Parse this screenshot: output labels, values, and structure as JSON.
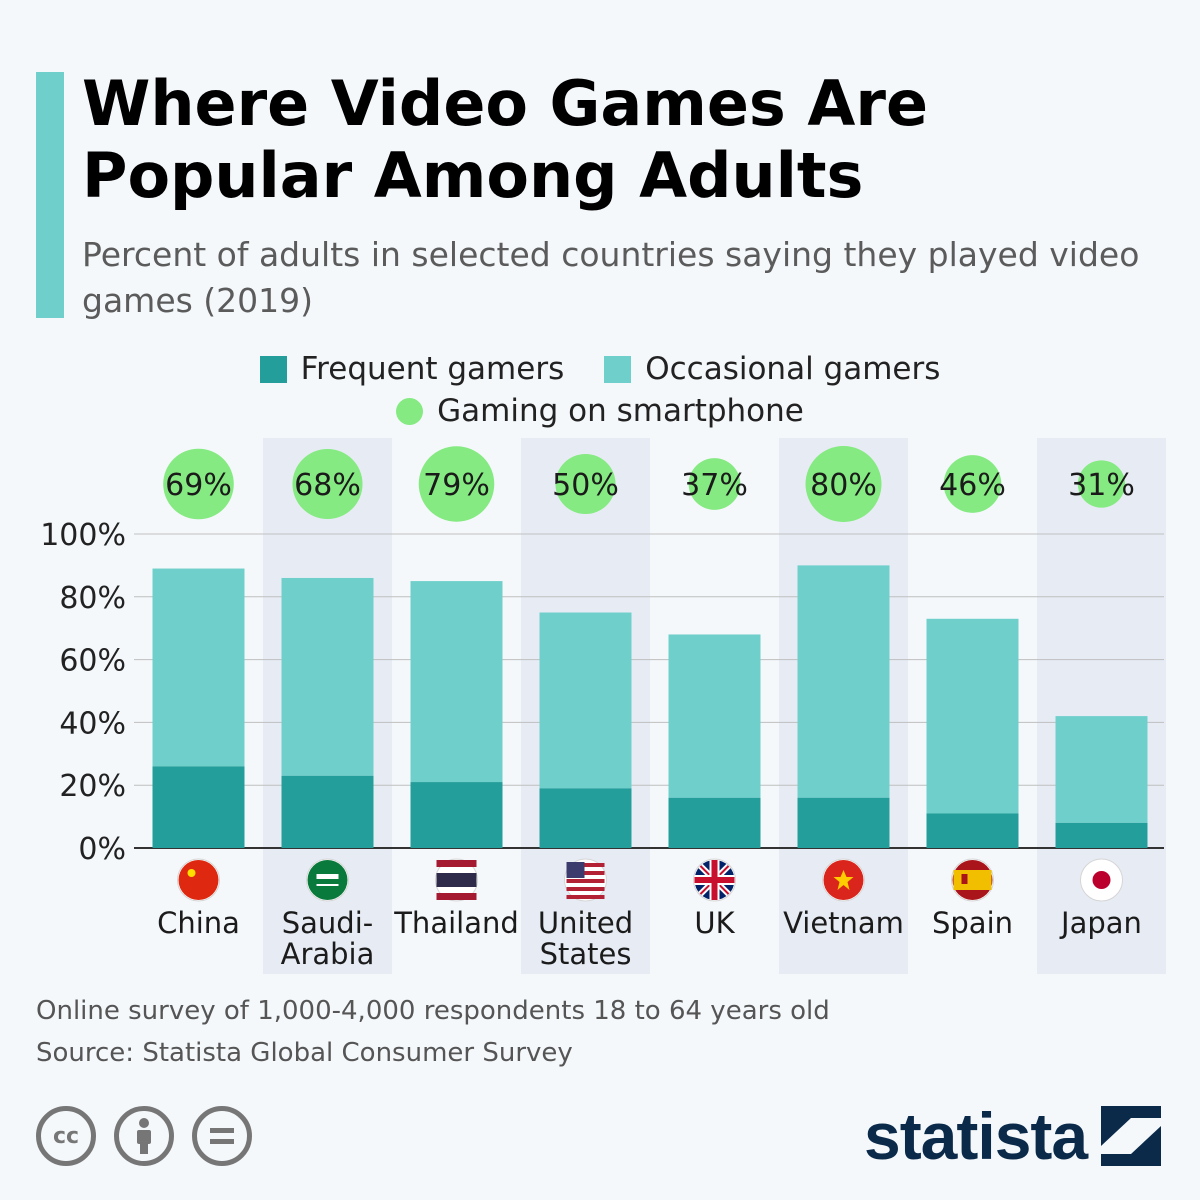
{
  "header": {
    "title": "Where Video Games Are Popular Among Adults",
    "subtitle": "Percent of adults in selected countries saying they played video games (2019)"
  },
  "colors": {
    "accent": "#6ecfcb",
    "frequent": "#249e9b",
    "occasional": "#6ecfcb",
    "smartphone": "#85ea81",
    "band": "#e7ecf4",
    "grid": "#bfbfbf"
  },
  "legend": {
    "frequent": "Frequent gamers",
    "occasional": "Occasional gamers",
    "smartphone": "Gaming on smartphone"
  },
  "chart_data": {
    "type": "bar",
    "stacked": true,
    "categories": [
      "China",
      "Saudi-Arabia",
      "Thailand",
      "United States",
      "UK",
      "Vietnam",
      "Spain",
      "Japan"
    ],
    "category_labels": [
      [
        "China"
      ],
      [
        "Saudi-",
        "Arabia"
      ],
      [
        "Thailand"
      ],
      [
        "United",
        "States"
      ],
      [
        "UK"
      ],
      [
        "Vietnam"
      ],
      [
        "Spain"
      ],
      [
        "Japan"
      ]
    ],
    "flags": [
      "china-flag-icon",
      "saudi-arabia-flag-icon",
      "thailand-flag-icon",
      "usa-flag-icon",
      "uk-flag-icon",
      "vietnam-flag-icon",
      "spain-flag-icon",
      "japan-flag-icon"
    ],
    "series": [
      {
        "name": "Frequent gamers",
        "values": [
          26,
          23,
          21,
          19,
          16,
          16,
          11,
          8
        ]
      },
      {
        "name": "Occasional gamers",
        "values": [
          63,
          63,
          64,
          56,
          52,
          74,
          62,
          34
        ]
      }
    ],
    "smartphone": {
      "name": "Gaming on smartphone",
      "values": [
        69,
        68,
        79,
        50,
        37,
        80,
        46,
        31
      ],
      "labels": [
        "69%",
        "68%",
        "79%",
        "50%",
        "37%",
        "80%",
        "46%",
        "31%"
      ]
    },
    "ylim": [
      0,
      100
    ],
    "yticks": [
      0,
      20,
      40,
      60,
      80,
      100
    ],
    "ytick_labels": [
      "0%",
      "20%",
      "40%",
      "60%",
      "80%",
      "100%"
    ],
    "grid": true,
    "legend_position": "top-center",
    "alternating_bands": true
  },
  "footer": {
    "note": "Online survey of 1,000-4,000 respondents 18 to 64 years old",
    "source": "Source: Statista Global Consumer Survey"
  },
  "license": {
    "icons": [
      "cc-icon",
      "attribution-icon",
      "no-derivatives-icon"
    ]
  },
  "logo": {
    "text": "statista"
  }
}
